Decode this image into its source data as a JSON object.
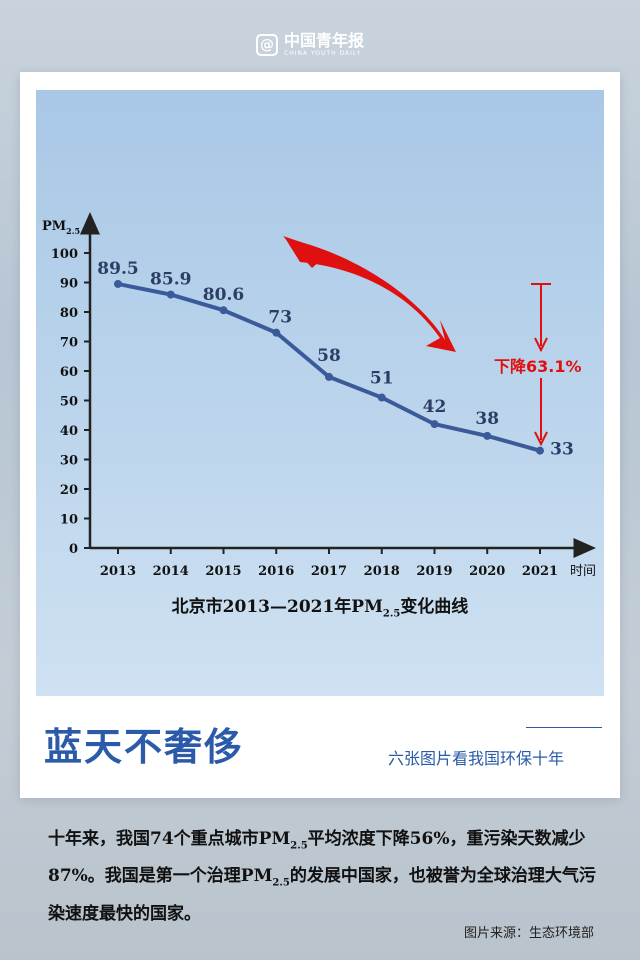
{
  "brand": {
    "mark": "@",
    "name_cn": "中国青年报",
    "name_en": "CHINA YOUTH DAILY"
  },
  "colors": {
    "line": "#3a5a9a",
    "arrow_red": "#e01010",
    "headline_blue": "#2a5aa8"
  },
  "chart_data": {
    "type": "line",
    "x": [
      "2013",
      "2014",
      "2015",
      "2016",
      "2017",
      "2018",
      "2019",
      "2020",
      "2021"
    ],
    "series": [
      {
        "values": [
          89.5,
          85.9,
          80.6,
          73,
          58,
          51,
          42,
          38,
          33
        ]
      }
    ],
    "data_labels": [
      "89.5",
      "85.9",
      "80.6",
      "73",
      "58",
      "51",
      "42",
      "38",
      "33"
    ],
    "y_ticks": [
      "0",
      "10",
      "20",
      "30",
      "40",
      "50",
      "60",
      "70",
      "80",
      "90",
      "100"
    ],
    "ylim": [
      0,
      100
    ],
    "ylabel": "PM",
    "ylabel_sub": "2.5",
    "xlabel": "时间",
    "annotation": "下降63.1%",
    "title_pre": "北京市2013—2021年PM",
    "title_sub": "2.5",
    "title_post": "变化曲线",
    "grid": false
  },
  "headline": "蓝天不奢侈",
  "subtitle": "六张图片看我国环保十年",
  "body": {
    "p1": "十年来，我国74个重点城市PM",
    "sub1": "2.5",
    "p2": "平均浓度下降56%，重污染天数减少87%。我国是第一个治理PM",
    "sub2": "2.5",
    "p3": "的发展中国家，也被誉为全球治理大气污染速度最快的国家。"
  },
  "source": "图片来源：生态环境部"
}
